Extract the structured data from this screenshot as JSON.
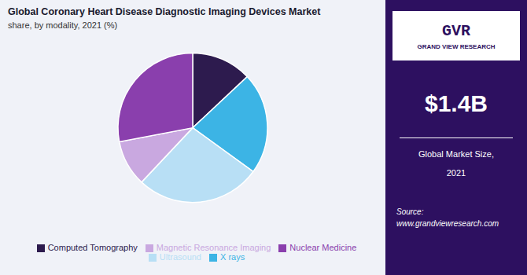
{
  "chart_data": {
    "type": "pie",
    "title": "Global Coronary Heart Disease Diagnostic Imaging Devices Market",
    "subtitle": "share, by modality, 2021 (%)",
    "categories": [
      "Computed Tomography",
      "X rays",
      "Ultrasound",
      "Magnetic Resonance Imaging",
      "Nuclear Medicine"
    ],
    "values": [
      13,
      22,
      27,
      10,
      28
    ],
    "colors": [
      "#2d1b4e",
      "#3cb4e5",
      "#b8dff5",
      "#c9a8e0",
      "#8a3fad"
    ],
    "legend": "bottom",
    "annotations": [
      "GVR",
      "GRAND VIEW RESEARCH",
      "$1.4B",
      "Global Market Size,",
      "2021",
      "Source:\nwww.grandviewresearch.com"
    ]
  }
}
